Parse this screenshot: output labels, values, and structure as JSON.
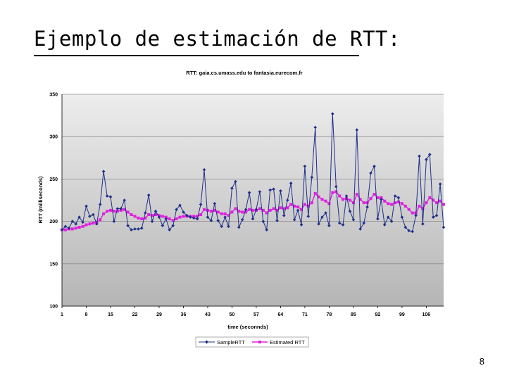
{
  "slide": {
    "title": "Ejemplo de estimación de RTT:",
    "page_number": "8"
  },
  "colors": {
    "sample": "#1f2f8a",
    "estimated": "#e020e0",
    "plot_bg_top": "#ededed",
    "plot_bg_bottom": "#b5b5b5",
    "grid": "#8c8c8c"
  },
  "chart_data": {
    "type": "line",
    "title": "RTT: gaia.cs.umass.edu to fantasia.eurecom.fr",
    "xlabel": "time (seconnds)",
    "ylabel": "RTT (milliseconds)",
    "ylim": [
      100,
      350
    ],
    "yticks": [
      100,
      150,
      200,
      250,
      300,
      350
    ],
    "xlim": [
      1,
      111
    ],
    "xticks": [
      1,
      8,
      15,
      22,
      29,
      36,
      43,
      50,
      57,
      64,
      71,
      78,
      85,
      92,
      99,
      106
    ],
    "grid": true,
    "legend": "bottom",
    "series": [
      {
        "name": "SampleRTT",
        "marker": "diamond",
        "x": [
          1,
          2,
          3,
          4,
          5,
          6,
          7,
          8,
          9,
          10,
          11,
          12,
          13,
          14,
          15,
          16,
          17,
          18,
          19,
          20,
          21,
          22,
          23,
          24,
          25,
          26,
          27,
          28,
          29,
          30,
          31,
          32,
          33,
          34,
          35,
          36,
          37,
          38,
          39,
          40,
          41,
          42,
          43,
          44,
          45,
          46,
          47,
          48,
          49,
          50,
          51,
          52,
          53,
          54,
          55,
          56,
          57,
          58,
          59,
          60,
          61,
          62,
          63,
          64,
          65,
          66,
          67,
          68,
          69,
          70,
          71,
          72,
          73,
          74,
          75,
          76,
          77,
          78,
          79,
          80,
          81,
          82,
          83,
          84,
          85,
          86,
          87,
          88,
          89,
          90,
          91,
          92,
          93,
          94,
          95,
          96,
          97,
          98,
          99,
          100,
          101,
          102,
          103,
          104,
          105,
          106,
          107,
          108,
          109,
          110,
          111
        ],
        "values": [
          190,
          194,
          192,
          200,
          197,
          205,
          199,
          218,
          206,
          208,
          197,
          220,
          259,
          230,
          229,
          200,
          215,
          215,
          225,
          195,
          190,
          191,
          191,
          192,
          210,
          231,
          200,
          212,
          205,
          195,
          203,
          190,
          195,
          214,
          219,
          211,
          207,
          205,
          204,
          203,
          220,
          261,
          205,
          201,
          221,
          201,
          194,
          205,
          194,
          239,
          247,
          193,
          202,
          214,
          234,
          203,
          214,
          235,
          200,
          190,
          237,
          238,
          201,
          236,
          207,
          225,
          245,
          202,
          213,
          196,
          265,
          206,
          252,
          311,
          197,
          205,
          210,
          195,
          327,
          241,
          198,
          196,
          230,
          212,
          202,
          308,
          191,
          198,
          217,
          257,
          265,
          203,
          226,
          196,
          205,
          200,
          230,
          228,
          205,
          193,
          189,
          188,
          207,
          277,
          197,
          273,
          279,
          205,
          207,
          244,
          193
        ]
      },
      {
        "name": "Estimated RTT",
        "marker": "square",
        "x": [
          1,
          2,
          3,
          4,
          5,
          6,
          7,
          8,
          9,
          10,
          11,
          12,
          13,
          14,
          15,
          16,
          17,
          18,
          19,
          20,
          21,
          22,
          23,
          24,
          25,
          26,
          27,
          28,
          29,
          30,
          31,
          32,
          33,
          34,
          35,
          36,
          37,
          38,
          39,
          40,
          41,
          42,
          43,
          44,
          45,
          46,
          47,
          48,
          49,
          50,
          51,
          52,
          53,
          54,
          55,
          56,
          57,
          58,
          59,
          60,
          61,
          62,
          63,
          64,
          65,
          66,
          67,
          68,
          69,
          70,
          71,
          72,
          73,
          74,
          75,
          76,
          77,
          78,
          79,
          80,
          81,
          82,
          83,
          84,
          85,
          86,
          87,
          88,
          89,
          90,
          91,
          92,
          93,
          94,
          95,
          96,
          97,
          98,
          99,
          100,
          101,
          102,
          103,
          104,
          105,
          106,
          107,
          108,
          109,
          110,
          111
        ],
        "values": [
          190,
          190,
          191,
          191,
          192,
          193,
          194,
          196,
          197,
          198,
          199,
          202,
          209,
          212,
          213,
          212,
          212,
          213,
          214,
          211,
          208,
          206,
          204,
          203,
          204,
          208,
          207,
          208,
          207,
          206,
          205,
          203,
          201,
          203,
          205,
          206,
          206,
          206,
          206,
          206,
          208,
          214,
          213,
          212,
          213,
          211,
          209,
          209,
          207,
          211,
          215,
          212,
          211,
          211,
          214,
          213,
          213,
          215,
          213,
          210,
          213,
          215,
          213,
          216,
          215,
          216,
          220,
          218,
          217,
          214,
          220,
          218,
          222,
          233,
          229,
          226,
          224,
          221,
          234,
          235,
          230,
          226,
          227,
          225,
          222,
          232,
          226,
          222,
          222,
          227,
          232,
          228,
          228,
          224,
          221,
          220,
          222,
          223,
          221,
          218,
          214,
          210,
          210,
          218,
          215,
          222,
          228,
          225,
          222,
          224,
          220
        ]
      }
    ]
  }
}
